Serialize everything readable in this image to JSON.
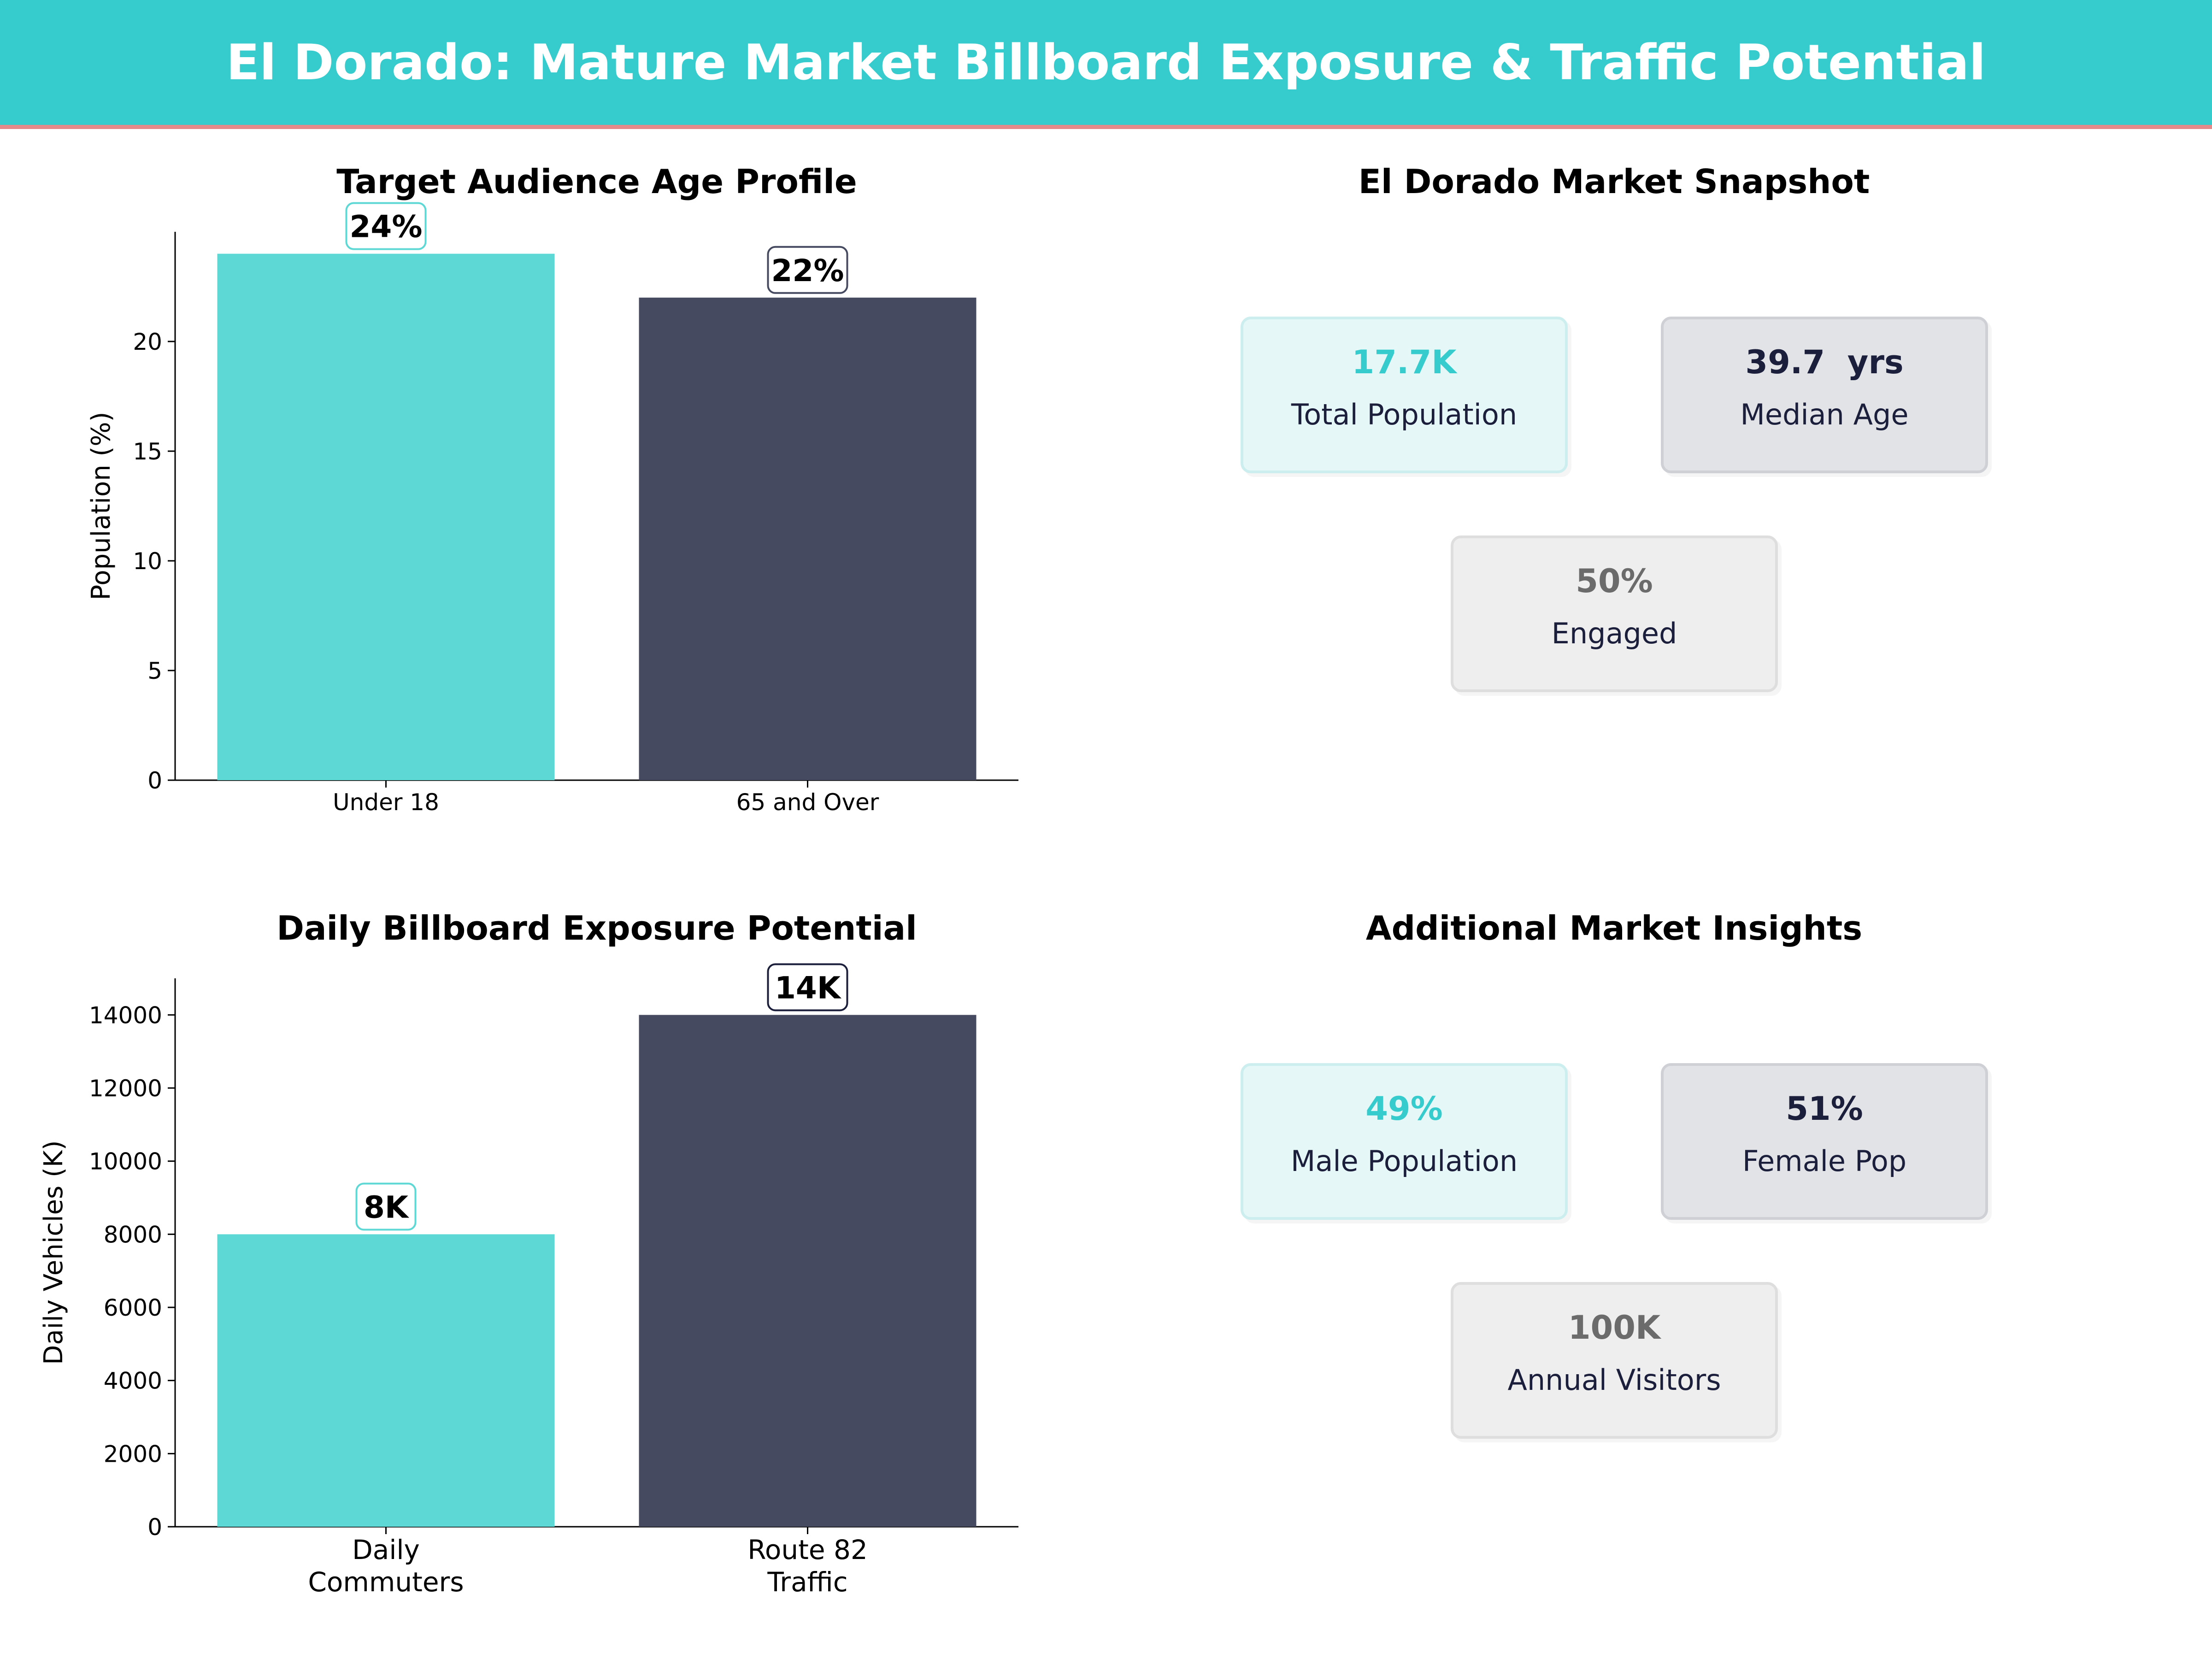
{
  "banner": {
    "title": "El Dorado: Mature Market Billboard Exposure & Traffic Potential"
  },
  "colors": {
    "banner": "#36cbcc",
    "accent_line": "#e58a8a",
    "teal": "#5dd8d5",
    "navy": "#464a60",
    "grey": "#6b6b6b",
    "dark_text": "#1c1f3c"
  },
  "chart_data": [
    {
      "type": "bar",
      "title": "Target Audience Age Profile",
      "xlabel": "",
      "ylabel": "Population (%)",
      "categories": [
        "Under 18",
        "65 and Over"
      ],
      "values": [
        24,
        22
      ],
      "data_labels": [
        "24%",
        "22%"
      ],
      "bar_colors": [
        "#5dd8d5",
        "#464a60"
      ],
      "label_border_colors": [
        "#5dd8d5",
        "#464a60"
      ],
      "ylim": [
        0,
        25
      ],
      "yticks": [
        0,
        5,
        10,
        15,
        20
      ],
      "grid": false
    },
    {
      "type": "bar",
      "title": "Daily Billboard Exposure Potential",
      "xlabel": "",
      "ylabel": "Daily Vehicles (K)",
      "categories": [
        "Daily\nCommuters",
        "Route 82\nTraffic"
      ],
      "values": [
        8000,
        14000
      ],
      "data_labels": [
        "8K",
        "14K"
      ],
      "bar_colors": [
        "#5dd8d5",
        "#464a60"
      ],
      "label_border_colors": [
        "#5dd8d5",
        "#1c1f3c"
      ],
      "ylim": [
        0,
        15000
      ],
      "yticks": [
        0,
        2000,
        4000,
        6000,
        8000,
        10000,
        12000,
        14000
      ],
      "grid": false
    }
  ],
  "snapshot": {
    "title": "El Dorado Market Snapshot",
    "cards": [
      {
        "value": "17.7K",
        "label": "Total Population",
        "style": "teal"
      },
      {
        "value": "39.7  yrs",
        "label": "Median Age",
        "style": "navy"
      },
      {
        "value": "50%",
        "label": "Engaged",
        "style": "grey"
      }
    ]
  },
  "insights": {
    "title": "Additional Market Insights",
    "cards": [
      {
        "value": "49%",
        "label": "Male Population",
        "style": "teal"
      },
      {
        "value": "51%",
        "label": "Female Pop",
        "style": "navy"
      },
      {
        "value": "100K",
        "label": "Annual Visitors",
        "style": "grey"
      }
    ]
  }
}
